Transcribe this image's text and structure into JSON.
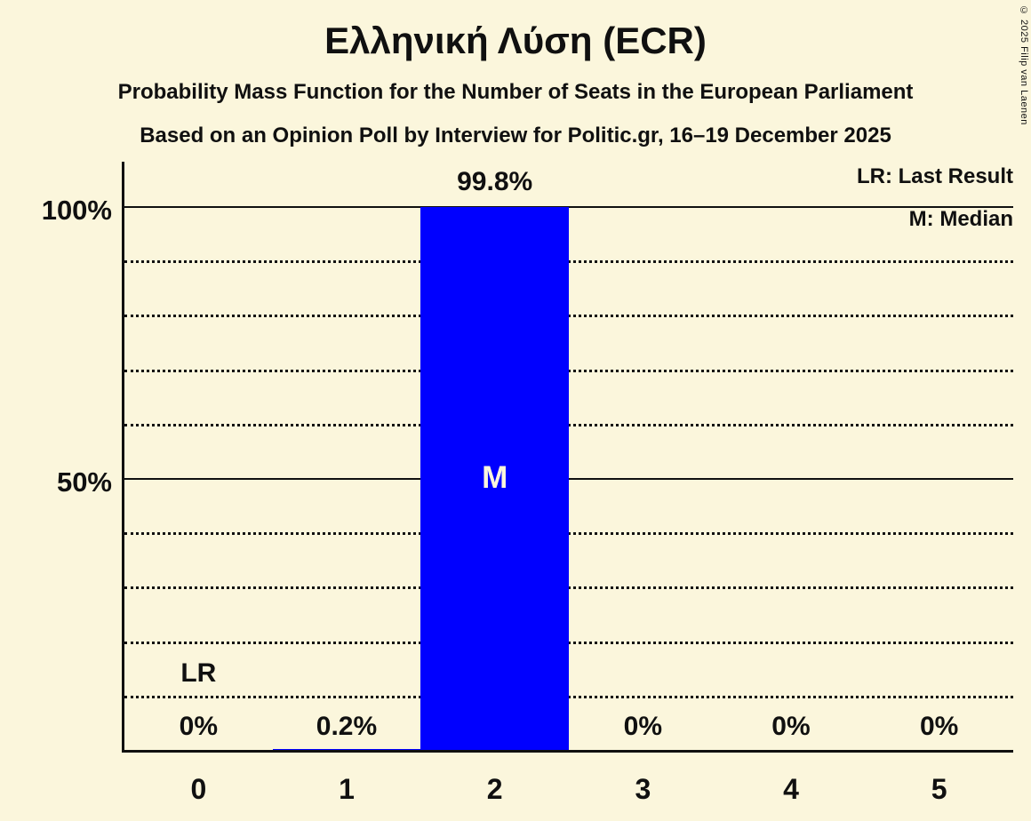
{
  "page": {
    "title": "Ελληνική Λύση (ECR)",
    "subtitle_line1": "Probability Mass Function for the Number of Seats in the European Parliament",
    "subtitle_line2": "Based on an Opinion Poll by Interview for Politic.gr, 16–19 December 2025",
    "copyright": "© 2025 Filip van Laenen"
  },
  "legend": {
    "last_result": "LR: Last Result",
    "median": "M: Median"
  },
  "colors": {
    "background": "#FBF6DC",
    "text": "#101010",
    "bar": "#0000FF",
    "median_label": "#FBF6DC",
    "gridline": "#101010"
  },
  "chart_data": {
    "type": "bar",
    "title": "Ελληνική Λύση (ECR)",
    "categories": [
      "0",
      "1",
      "2",
      "3",
      "4",
      "5"
    ],
    "values": [
      0,
      0.2,
      99.8,
      0,
      0,
      0
    ],
    "value_labels": [
      "0%",
      "0.2%",
      "99.8%",
      "0%",
      "0%",
      "0%"
    ],
    "y_ticks": [
      {
        "label": "100%",
        "value": 100
      },
      {
        "label": "50%",
        "value": 50
      }
    ],
    "ylim": [
      0,
      100
    ],
    "gridlines": {
      "dotted_step": 10,
      "solid_at": [
        50,
        100
      ]
    },
    "legend_position": "top-right",
    "median": {
      "category": "2",
      "marker": "M",
      "marker_at_percent": 50
    },
    "last_result": {
      "category": "0",
      "marker": "LR"
    }
  }
}
